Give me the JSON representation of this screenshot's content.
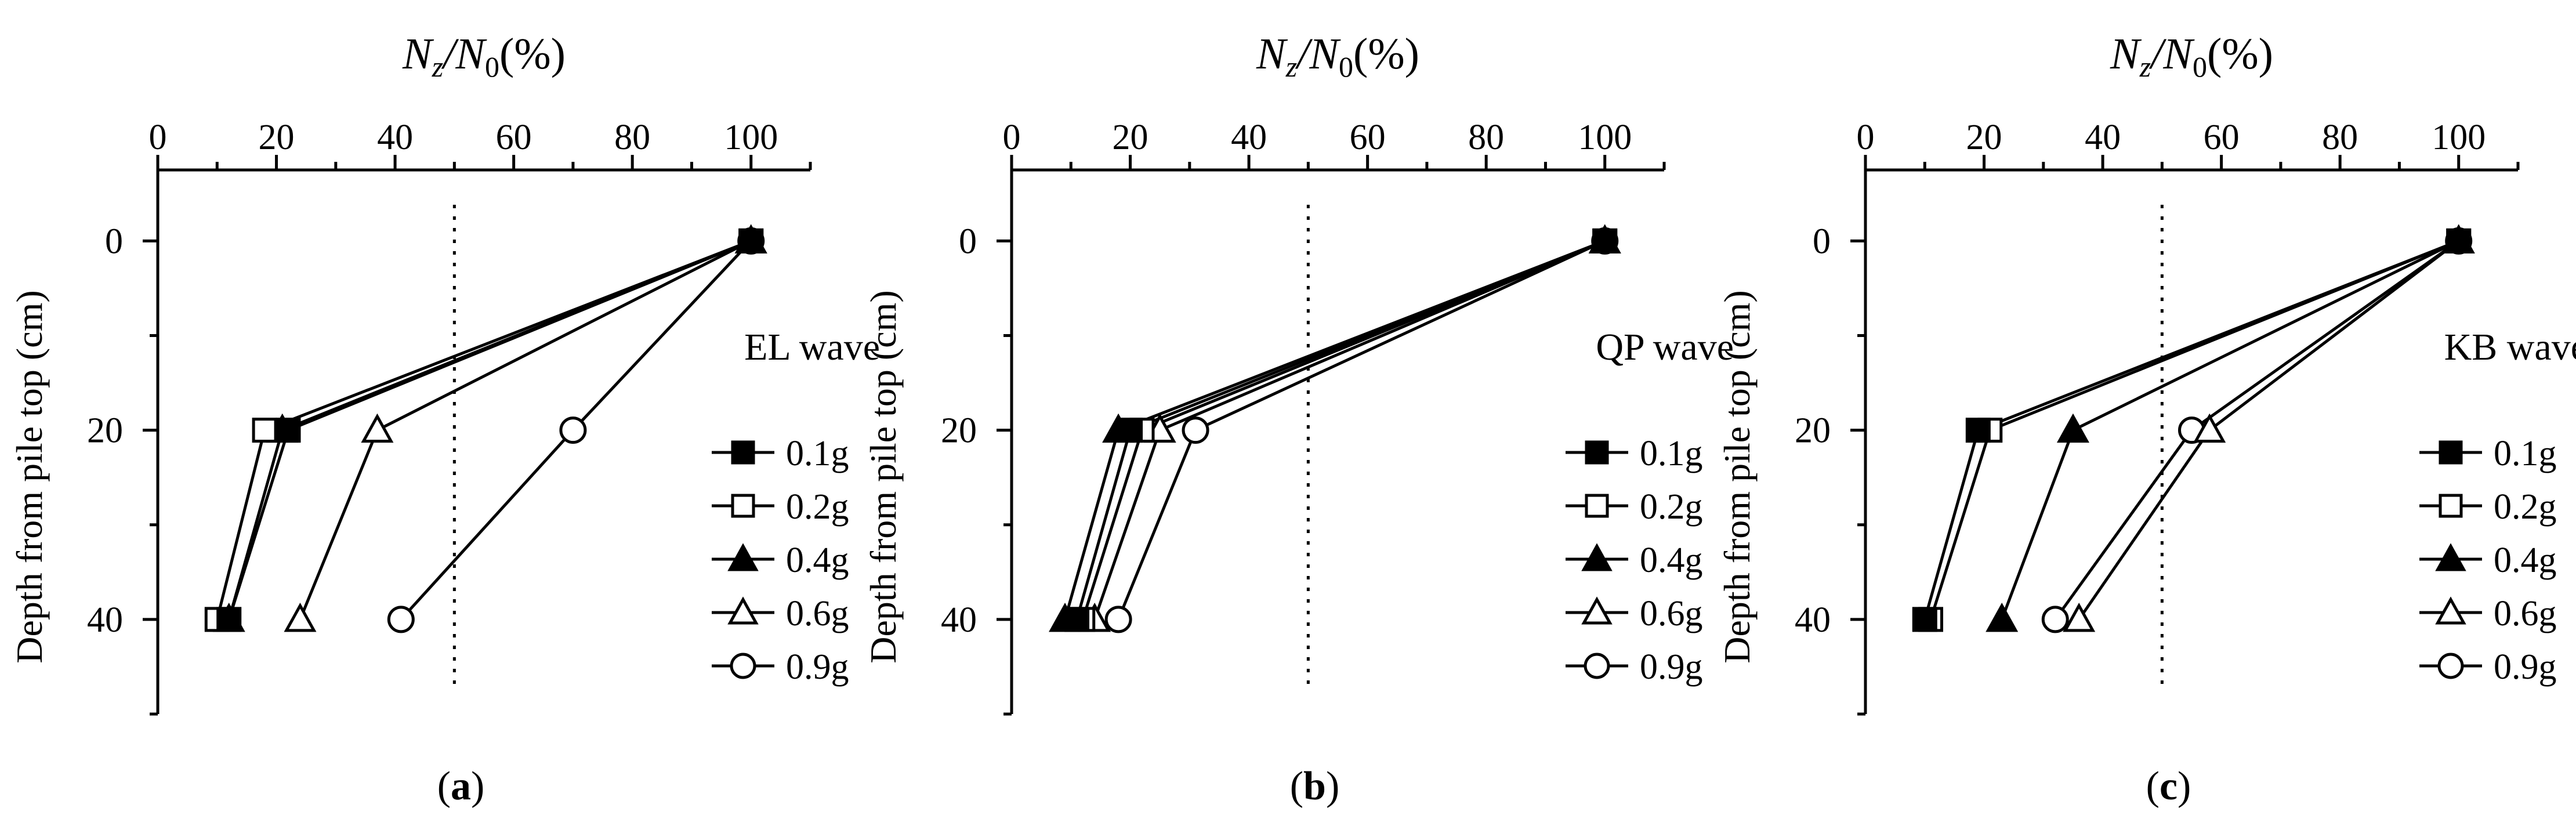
{
  "chart_data": [
    {
      "type": "line",
      "panel_label": "a",
      "title": "",
      "xlabel": "N",
      "xlabel_sub1": "z",
      "xlabel_mid": "/N",
      "xlabel_sub2": "0",
      "xlabel_tail": "(%)",
      "ylabel": "Depth from pile top (cm)",
      "xlim": [
        0,
        110
      ],
      "ylim": [
        50,
        -7.5
      ],
      "xticks": [
        "0",
        "20",
        "40",
        "60",
        "80",
        "100"
      ],
      "yticks": [
        "0",
        "20",
        "40"
      ],
      "ref_line_x": 50,
      "wave_label": "EL wave",
      "series": [
        {
          "name": "0.1g",
          "marker": "square-filled",
          "points": [
            [
              100,
              0
            ],
            [
              22,
              20
            ],
            [
              12,
              40
            ]
          ]
        },
        {
          "name": "0.2g",
          "marker": "square-open",
          "points": [
            [
              100,
              0
            ],
            [
              18,
              20
            ],
            [
              10,
              40
            ]
          ]
        },
        {
          "name": "0.4g",
          "marker": "triangle-filled",
          "points": [
            [
              100,
              0
            ],
            [
              21,
              20
            ],
            [
              12,
              40
            ]
          ]
        },
        {
          "name": "0.6g",
          "marker": "triangle-open",
          "points": [
            [
              100,
              0
            ],
            [
              37,
              20
            ],
            [
              24,
              40
            ]
          ]
        },
        {
          "name": "0.9g",
          "marker": "circle-open",
          "points": [
            [
              100,
              0
            ],
            [
              70,
              20
            ],
            [
              41,
              40
            ]
          ]
        }
      ]
    },
    {
      "type": "line",
      "panel_label": "b",
      "title": "",
      "xlabel": "N",
      "xlabel_sub1": "z",
      "xlabel_mid": "/N",
      "xlabel_sub2": "0",
      "xlabel_tail": "(%)",
      "ylabel": "Depth from pile top (cm)",
      "xlim": [
        0,
        110
      ],
      "ylim": [
        50,
        -7.5
      ],
      "xticks": [
        "0",
        "20",
        "40",
        "60",
        "80",
        "100"
      ],
      "yticks": [
        "0",
        "20",
        "40"
      ],
      "ref_line_x": 50,
      "wave_label": "QP wave",
      "series": [
        {
          "name": "0.1g",
          "marker": "square-filled",
          "points": [
            [
              100,
              0
            ],
            [
              20,
              20
            ],
            [
              11,
              40
            ]
          ]
        },
        {
          "name": "0.2g",
          "marker": "square-open",
          "points": [
            [
              100,
              0
            ],
            [
              22,
              20
            ],
            [
              12,
              40
            ]
          ]
        },
        {
          "name": "0.4g",
          "marker": "triangle-filled",
          "points": [
            [
              100,
              0
            ],
            [
              18,
              20
            ],
            [
              9,
              40
            ]
          ]
        },
        {
          "name": "0.6g",
          "marker": "triangle-open",
          "points": [
            [
              100,
              0
            ],
            [
              25,
              20
            ],
            [
              14,
              40
            ]
          ]
        },
        {
          "name": "0.9g",
          "marker": "circle-open",
          "points": [
            [
              100,
              0
            ],
            [
              31,
              20
            ],
            [
              18,
              40
            ]
          ]
        }
      ]
    },
    {
      "type": "line",
      "panel_label": "c",
      "title": "",
      "xlabel": "N",
      "xlabel_sub1": "z",
      "xlabel_mid": "/N",
      "xlabel_sub2": "0",
      "xlabel_tail": "(%)",
      "ylabel": "Depth from pile top (cm)",
      "xlim": [
        0,
        110
      ],
      "ylim": [
        50,
        -7.5
      ],
      "xticks": [
        "0",
        "20",
        "40",
        "60",
        "80",
        "100"
      ],
      "yticks": [
        "0",
        "20",
        "40"
      ],
      "ref_line_x": 50,
      "wave_label": "KB wave",
      "series": [
        {
          "name": "0.1g",
          "marker": "square-filled",
          "points": [
            [
              100,
              0
            ],
            [
              19,
              20
            ],
            [
              10,
              40
            ]
          ]
        },
        {
          "name": "0.2g",
          "marker": "square-open",
          "points": [
            [
              100,
              0
            ],
            [
              21,
              20
            ],
            [
              11,
              40
            ]
          ]
        },
        {
          "name": "0.4g",
          "marker": "triangle-filled",
          "points": [
            [
              100,
              0
            ],
            [
              35,
              20
            ],
            [
              23,
              40
            ]
          ]
        },
        {
          "name": "0.6g",
          "marker": "triangle-open",
          "points": [
            [
              100,
              0
            ],
            [
              58,
              20
            ],
            [
              36,
              40
            ]
          ]
        },
        {
          "name": "0.9g",
          "marker": "circle-open",
          "points": [
            [
              100,
              0
            ],
            [
              55,
              20
            ],
            [
              32,
              40
            ]
          ]
        }
      ]
    }
  ]
}
